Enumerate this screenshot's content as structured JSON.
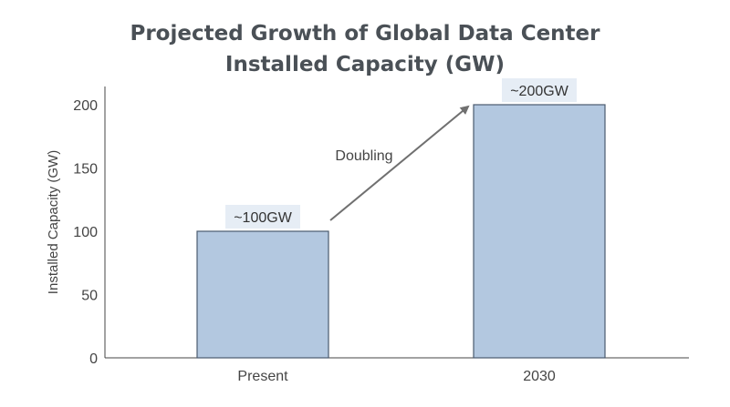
{
  "chart_data": {
    "type": "bar",
    "title": "Projected Growth of Global Data Center Installed Capacity (GW)",
    "title_lines": [
      "Projected Growth of Global Data Center",
      "Installed Capacity (GW)"
    ],
    "xlabel": "",
    "ylabel": "Installed Capacity (GW)",
    "categories": [
      "Present",
      "2030"
    ],
    "values": [
      100,
      200
    ],
    "data_labels": [
      "~100GW",
      "~200GW"
    ],
    "yticks": [
      0,
      50,
      100,
      150,
      200
    ],
    "ylim": [
      0,
      215
    ],
    "grid": false,
    "annotation": {
      "text": "Doubling",
      "arrow_from": "Present",
      "arrow_to": "2030"
    },
    "colors": {
      "bar": "#b3c8e0",
      "bar_edge": "#4a5a6e",
      "label_bg": "#e6edf5",
      "arrow": "#707070",
      "axis": "#444444"
    }
  }
}
